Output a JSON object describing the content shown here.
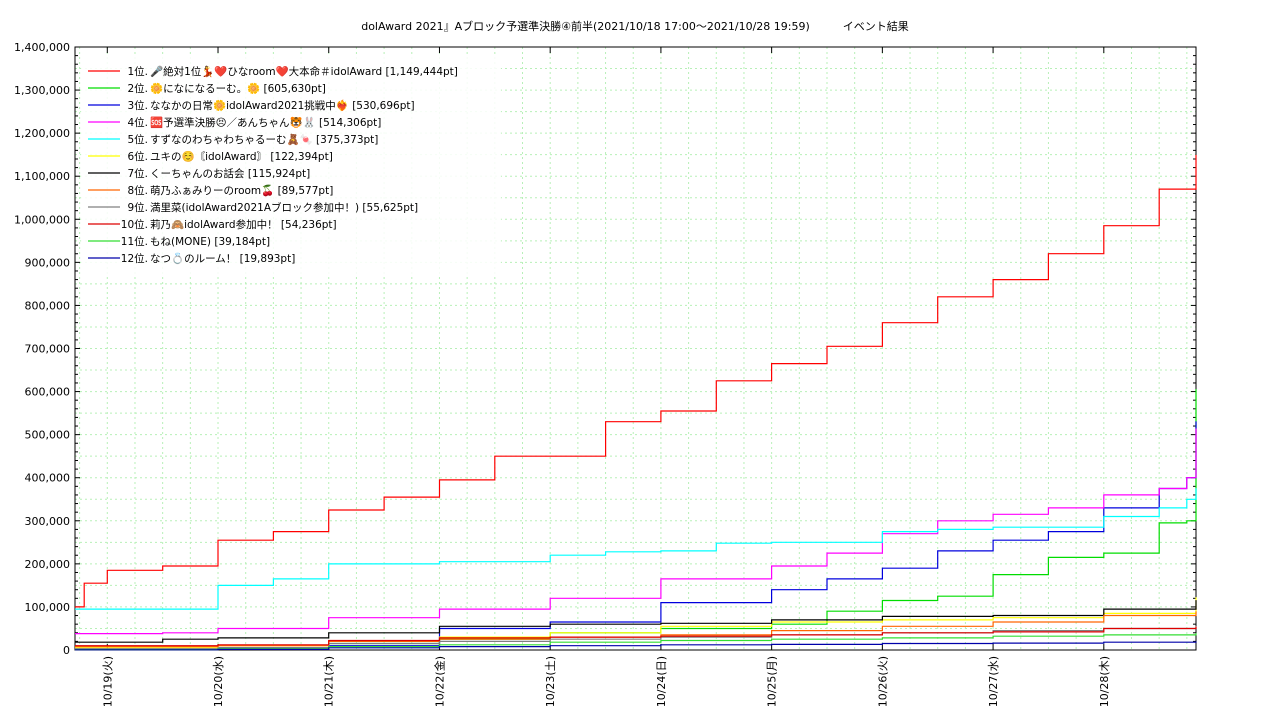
{
  "chart_data": {
    "type": "line",
    "title": "dolAward 2021』Aブロック予選準決勝④前半(2021/10/18 17:00～2021/10/28 19:59)　　　イベント結果",
    "xlabel": "",
    "ylabel": "",
    "ylim": [
      0,
      1400000
    ],
    "xlim": [
      "2021-10-18 17:00",
      "2021-10-28 19:59"
    ],
    "grid": true,
    "legend_position": "top-left",
    "yticks": [
      "0",
      "100,000",
      "200,000",
      "300,000",
      "400,000",
      "500,000",
      "600,000",
      "700,000",
      "800,000",
      "900,000",
      "1,000,000",
      "1,100,000",
      "1,200,000",
      "1,300,000",
      "1,400,000"
    ],
    "xtick_labels": [
      "10/19(火)",
      "10/20(水)",
      "10/21(木)",
      "10/22(金)",
      "10/23(土)",
      "10/24(日)",
      "10/25(月)",
      "10/26(火)",
      "10/27(水)",
      "10/28(木)"
    ],
    "series": [
      {
        "name": "1位.🎤絶対1位💃❤️ひなroom❤️大本命＃idolAward [1,149,444pt]",
        "color": "#ff0000",
        "x": [
          "2021-10-18 17:00",
          "2021-10-18 19:00",
          "2021-10-19 00:00",
          "2021-10-19 12:00",
          "2021-10-20 00:00",
          "2021-10-20 12:00",
          "2021-10-21 00:00",
          "2021-10-21 12:00",
          "2021-10-22 00:00",
          "2021-10-22 12:00",
          "2021-10-23 00:00",
          "2021-10-23 12:00",
          "2021-10-24 00:00",
          "2021-10-24 12:00",
          "2021-10-25 00:00",
          "2021-10-25 12:00",
          "2021-10-26 00:00",
          "2021-10-26 12:00",
          "2021-10-27 00:00",
          "2021-10-27 12:00",
          "2021-10-28 00:00",
          "2021-10-28 12:00",
          "2021-10-28 19:59"
        ],
        "y": [
          100000,
          155000,
          185000,
          195000,
          255000,
          275000,
          325000,
          355000,
          395000,
          450000,
          450000,
          530000,
          555000,
          625000,
          665000,
          705000,
          760000,
          820000,
          860000,
          920000,
          985000,
          1070000,
          1149444
        ]
      },
      {
        "name": "2位.🌼になになるーむ。🌼 [605,630pt]",
        "color": "#00dd00",
        "x": [
          "2021-10-18 17:00",
          "2021-10-20 00:00",
          "2021-10-21 00:00",
          "2021-10-22 00:00",
          "2021-10-23 00:00",
          "2021-10-24 00:00",
          "2021-10-25 00:00",
          "2021-10-25 12:00",
          "2021-10-26 00:00",
          "2021-10-26 12:00",
          "2021-10-27 00:00",
          "2021-10-27 12:00",
          "2021-10-28 00:00",
          "2021-10-28 12:00",
          "2021-10-28 18:00",
          "2021-10-28 19:59"
        ],
        "y": [
          2000,
          5000,
          15000,
          25000,
          40000,
          50000,
          60000,
          90000,
          115000,
          125000,
          175000,
          215000,
          225000,
          295000,
          300000,
          605630
        ]
      },
      {
        "name": "3位.ななかの日常🌼idolAward2021挑戦中❤️‍🔥 [530,696pt]",
        "color": "#0000dd",
        "x": [
          "2021-10-18 17:00",
          "2021-10-20 00:00",
          "2021-10-21 00:00",
          "2021-10-22 00:00",
          "2021-10-23 00:00",
          "2021-10-24 00:00",
          "2021-10-25 00:00",
          "2021-10-25 12:00",
          "2021-10-26 00:00",
          "2021-10-26 12:00",
          "2021-10-27 00:00",
          "2021-10-27 12:00",
          "2021-10-28 00:00",
          "2021-10-28 12:00",
          "2021-10-28 18:00",
          "2021-10-28 19:59"
        ],
        "y": [
          2000,
          5000,
          10000,
          50000,
          65000,
          110000,
          140000,
          165000,
          190000,
          230000,
          255000,
          275000,
          330000,
          375000,
          400000,
          530696
        ]
      },
      {
        "name": "4位.🆘予選準決勝😣／あんちゃん🐯🐰 [514,306pt]",
        "color": "#ff00ff",
        "x": [
          "2021-10-18 17:00",
          "2021-10-19 12:00",
          "2021-10-20 00:00",
          "2021-10-21 00:00",
          "2021-10-22 00:00",
          "2021-10-23 00:00",
          "2021-10-24 00:00",
          "2021-10-25 00:00",
          "2021-10-25 12:00",
          "2021-10-26 00:00",
          "2021-10-26 12:00",
          "2021-10-27 00:00",
          "2021-10-27 12:00",
          "2021-10-28 00:00",
          "2021-10-28 12:00",
          "2021-10-28 18:00",
          "2021-10-28 19:59"
        ],
        "y": [
          38000,
          40000,
          50000,
          75000,
          95000,
          120000,
          165000,
          195000,
          225000,
          270000,
          300000,
          315000,
          330000,
          360000,
          375000,
          400000,
          514306
        ]
      },
      {
        "name": "5位.すずなのわちゃわちゃるーむ🧸🍬 [375,373pt]",
        "color": "#00ffff",
        "x": [
          "2021-10-18 17:00",
          "2021-10-19 12:00",
          "2021-10-20 00:00",
          "2021-10-20 12:00",
          "2021-10-21 00:00",
          "2021-10-22 00:00",
          "2021-10-23 00:00",
          "2021-10-23 12:00",
          "2021-10-24 00:00",
          "2021-10-24 12:00",
          "2021-10-25 00:00",
          "2021-10-26 00:00",
          "2021-10-26 12:00",
          "2021-10-27 00:00",
          "2021-10-28 00:00",
          "2021-10-28 12:00",
          "2021-10-28 18:00",
          "2021-10-28 19:59"
        ],
        "y": [
          95000,
          95000,
          150000,
          165000,
          200000,
          205000,
          220000,
          228000,
          230000,
          248000,
          250000,
          275000,
          280000,
          285000,
          310000,
          330000,
          350000,
          375373
        ]
      },
      {
        "name": "6位.ユキの☺️〘idolAward〙 [122,394pt]",
        "color": "#ffff00",
        "x": [
          "2021-10-18 17:00",
          "2021-10-20 00:00",
          "2021-10-21 00:00",
          "2021-10-22 00:00",
          "2021-10-23 00:00",
          "2021-10-24 00:00",
          "2021-10-25 00:00",
          "2021-10-26 00:00",
          "2021-10-27 00:00",
          "2021-10-28 00:00",
          "2021-10-28 19:59"
        ],
        "y": [
          5000,
          10000,
          20000,
          30000,
          40000,
          55000,
          65000,
          70000,
          75000,
          85000,
          122394
        ]
      },
      {
        "name": "7位.くーちゃんのお話会 [115,924pt]",
        "color": "#000000",
        "x": [
          "2021-10-18 17:00",
          "2021-10-19 12:00",
          "2021-10-20 00:00",
          "2021-10-21 00:00",
          "2021-10-22 00:00",
          "2021-10-23 00:00",
          "2021-10-24 00:00",
          "2021-10-25 00:00",
          "2021-10-26 00:00",
          "2021-10-27 00:00",
          "2021-10-28 00:00",
          "2021-10-28 19:59"
        ],
        "y": [
          18000,
          25000,
          28000,
          40000,
          55000,
          60000,
          62000,
          70000,
          78000,
          80000,
          95000,
          115924
        ]
      },
      {
        "name": "8位.萌乃ふぁみりーのroom🍒 [89,577pt]",
        "color": "#ff6600",
        "x": [
          "2021-10-18 17:00",
          "2021-10-20 00:00",
          "2021-10-21 00:00",
          "2021-10-22 00:00",
          "2021-10-23 00:00",
          "2021-10-24 00:00",
          "2021-10-25 00:00",
          "2021-10-26 00:00",
          "2021-10-27 00:00",
          "2021-10-28 00:00",
          "2021-10-28 19:59"
        ],
        "y": [
          8000,
          10000,
          20000,
          25000,
          30000,
          35000,
          45000,
          55000,
          65000,
          80000,
          89577
        ]
      },
      {
        "name": "9位.満里菜(idolAward2021Aブロック参加中！) [55,625pt]",
        "color": "#808080",
        "x": [
          "2021-10-18 17:00",
          "2021-10-20 00:00",
          "2021-10-21 00:00",
          "2021-10-22 00:00",
          "2021-10-23 00:00",
          "2021-10-24 00:00",
          "2021-10-25 00:00",
          "2021-10-26 00:00",
          "2021-10-27 00:00",
          "2021-10-28 00:00",
          "2021-10-28 19:59"
        ],
        "y": [
          3000,
          5000,
          15000,
          20000,
          25000,
          30000,
          35000,
          40000,
          45000,
          50000,
          55625
        ]
      },
      {
        "name": "10位.莉乃🙈idolAward参加中！ [54,236pt]",
        "color": "#dd0000",
        "x": [
          "2021-10-18 17:00",
          "2021-10-20 00:00",
          "2021-10-21 00:00",
          "2021-10-22 00:00",
          "2021-10-23 00:00",
          "2021-10-24 00:00",
          "2021-10-25 00:00",
          "2021-10-26 00:00",
          "2021-10-27 00:00",
          "2021-10-28 00:00",
          "2021-10-28 19:59"
        ],
        "y": [
          10000,
          12000,
          22000,
          28000,
          30000,
          32000,
          35000,
          40000,
          42000,
          50000,
          54236
        ]
      },
      {
        "name": "11位.もね(MONE) [39,184pt]",
        "color": "#33dd33",
        "x": [
          "2021-10-18 17:00",
          "2021-10-20 00:00",
          "2021-10-21 00:00",
          "2021-10-22 00:00",
          "2021-10-23 00:00",
          "2021-10-24 00:00",
          "2021-10-25 00:00",
          "2021-10-26 00:00",
          "2021-10-27 00:00",
          "2021-10-28 00:00",
          "2021-10-28 19:59"
        ],
        "y": [
          1000,
          3000,
          8000,
          12000,
          18000,
          22000,
          25000,
          28000,
          32000,
          35000,
          39184
        ]
      },
      {
        "name": "12位.なつ💍のルーム！ [19,893pt]",
        "color": "#0000aa",
        "x": [
          "2021-10-18 17:00",
          "2021-10-20 00:00",
          "2021-10-21 00:00",
          "2021-10-22 00:00",
          "2021-10-23 00:00",
          "2021-10-24 00:00",
          "2021-10-25 00:00",
          "2021-10-26 00:00",
          "2021-10-27 00:00",
          "2021-10-28 00:00",
          "2021-10-28 19:59"
        ],
        "y": [
          500,
          1500,
          5000,
          8000,
          10000,
          12000,
          13000,
          15000,
          16000,
          18000,
          19893
        ]
      }
    ]
  }
}
